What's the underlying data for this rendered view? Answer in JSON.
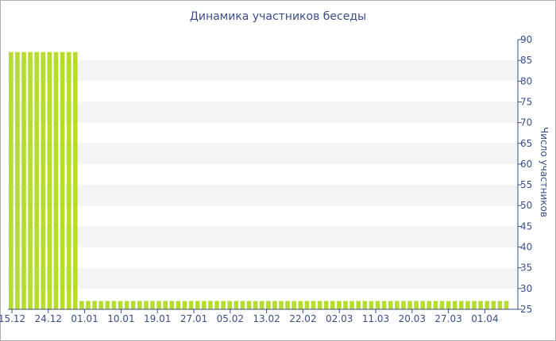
{
  "chart_data": {
    "type": "bar",
    "title": "Динамика участников беседы",
    "ylabel": "Число участников",
    "ylim": [
      25,
      90
    ],
    "yticks": [
      "90",
      "85",
      "80",
      "75",
      "70",
      "65",
      "60",
      "55",
      "50",
      "45",
      "40",
      "35",
      "30",
      "25"
    ],
    "xtick_labels": [
      "15.12",
      "24.12",
      "01.01",
      "10.01",
      "19.01",
      "27.01",
      "05.02",
      "13.02",
      "22.02",
      "02.03",
      "11.03",
      "20.03",
      "27.03",
      "01.04"
    ],
    "high_value": 87,
    "low_value": 27,
    "high_bar_count": 11,
    "low_bar_count": 67,
    "grid_bands": true,
    "colors": {
      "bar": "#b5dc2e",
      "band": "#f4f4f4",
      "text": "#3a4f8a",
      "axis": "#3a4f8a"
    }
  }
}
